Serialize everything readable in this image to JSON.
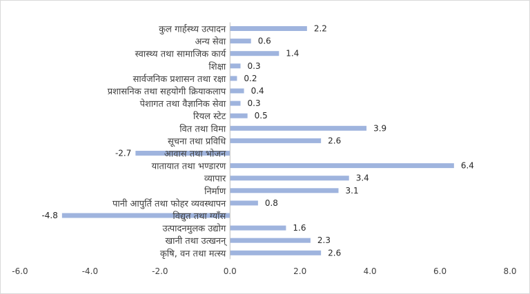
{
  "chart_data": {
    "type": "bar",
    "orientation": "horizontal",
    "title": "",
    "xlabel": "",
    "ylabel": "",
    "xlim": [
      -6,
      8
    ],
    "x_ticks": [
      "-6.0",
      "-4.0",
      "-2.0",
      "0.0",
      "2.0",
      "4.0",
      "6.0",
      "8.0"
    ],
    "grid": false,
    "legend": "none",
    "bar_color": "#9fb4de",
    "categories": [
      "कुल गार्हस्थ्य उत्पादन",
      "अन्य सेवा",
      "स्वास्थ्य तथा सामाजिक कार्य",
      "शिक्षा",
      "सार्वजनिक प्रशासन तथा रक्षा",
      "प्रशासनिक तथा सहयोगी क्रियाकलाप",
      "पेशागत तथा वैज्ञानिक सेवा",
      "रियल स्टेट",
      "वित तथा विमा",
      "सूचना तथा प्रविधि",
      "आवास तथा भोजन",
      "यातायात तथा भण्डारण",
      "व्यापार",
      "निर्माण",
      "पानी आपुर्ति तथा फोहर व्यवस्थापन",
      "विद्युत तथा ग्याँस",
      "उत्पादनमुलक उद्योग",
      "खानी तथा उत्खनन्",
      "कृषि, वन तथा मत्स्य"
    ],
    "values": [
      2.2,
      0.6,
      1.4,
      0.3,
      0.2,
      0.4,
      0.3,
      0.5,
      3.9,
      2.6,
      -2.7,
      6.4,
      3.4,
      3.1,
      0.8,
      -4.8,
      1.6,
      2.3,
      2.6
    ],
    "value_labels": [
      "2.2",
      "0.6",
      "1.4",
      "0.3",
      "0.2",
      "0.4",
      "0.3",
      "0.5",
      "3.9",
      "2.6",
      "-2.7",
      "6.4",
      "3.4",
      "3.1",
      "0.8",
      "-4.8",
      "1.6",
      "2.3",
      "2.6"
    ]
  }
}
